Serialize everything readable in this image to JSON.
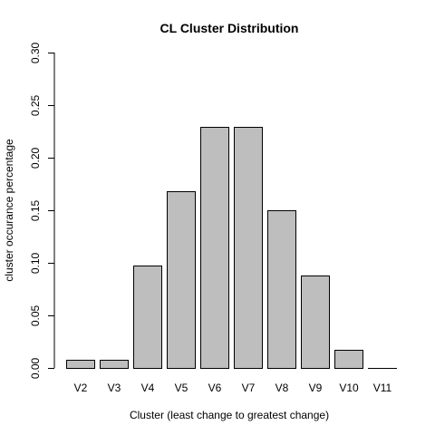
{
  "chart_data": {
    "type": "bar",
    "title": "CL Cluster Distribution",
    "xlabel": "Cluster (least change to greatest change)",
    "ylabel": "cluster occurance percentage",
    "categories": [
      "V2",
      "V3",
      "V4",
      "V5",
      "V6",
      "V7",
      "V8",
      "V9",
      "V10",
      "V11"
    ],
    "values": [
      0.008,
      0.008,
      0.097,
      0.168,
      0.229,
      0.229,
      0.15,
      0.088,
      0.017,
      0.0
    ],
    "ylim": [
      0,
      0.3
    ],
    "yticks": [
      "0.00",
      "0.05",
      "0.10",
      "0.15",
      "0.20",
      "0.25",
      "0.30"
    ],
    "grid": false,
    "legend": "none",
    "bar_color": "#bebebe",
    "edge_color": "#000000"
  }
}
